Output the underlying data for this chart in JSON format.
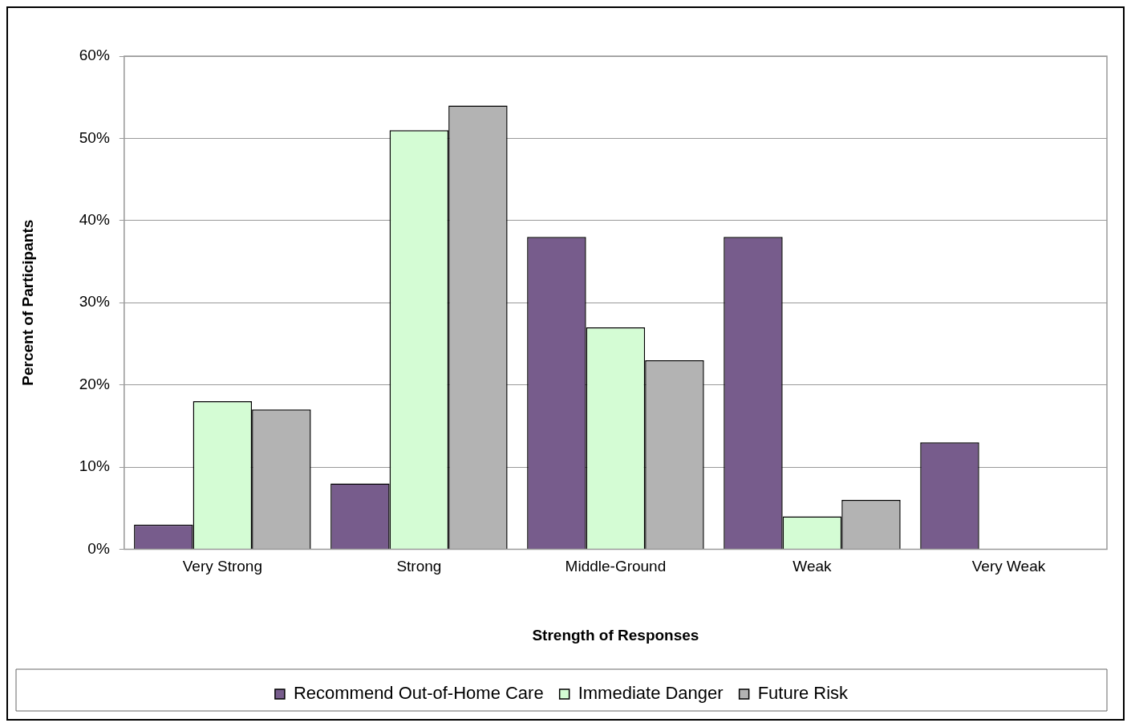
{
  "chart_data": {
    "type": "bar",
    "xlabel": "Strength of Responses",
    "ylabel": "Percent of Participants",
    "categories": [
      "Very Strong",
      "Strong",
      "Middle-Ground",
      "Weak",
      "Very Weak"
    ],
    "series": [
      {
        "name": "Recommend Out-of-Home Care",
        "color": "#775c8c",
        "values": [
          3,
          8,
          38,
          38,
          13
        ]
      },
      {
        "name": "Immediate Danger",
        "color": "#d4fcd4",
        "values": [
          18,
          51,
          27,
          4,
          0
        ]
      },
      {
        "name": "Future Risk",
        "color": "#b3b3b3",
        "values": [
          17,
          54,
          23,
          6,
          0
        ]
      }
    ],
    "ylim": [
      0,
      60
    ],
    "yticks": [
      {
        "value": 0,
        "label": "0%"
      },
      {
        "value": 10,
        "label": "10%"
      },
      {
        "value": 20,
        "label": "20%"
      },
      {
        "value": 30,
        "label": "30%"
      },
      {
        "value": 40,
        "label": "40%"
      },
      {
        "value": 50,
        "label": "50%"
      },
      {
        "value": 60,
        "label": "60%"
      }
    ],
    "grid": "y",
    "legend": "bottom"
  }
}
